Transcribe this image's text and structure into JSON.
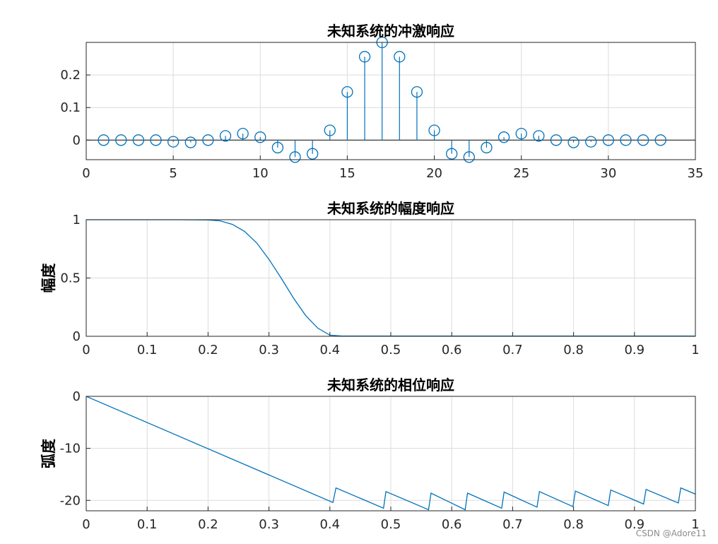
{
  "watermark": "CSDN @Adore11",
  "chart_data": [
    {
      "type": "stem",
      "title": "未知系统的冲激响应",
      "ylabel": "",
      "xlim": [
        0,
        35
      ],
      "ylim": [
        -0.06,
        0.3
      ],
      "xticks": [
        0,
        5,
        10,
        15,
        20,
        25,
        30,
        35
      ],
      "yticks": [
        0,
        0.1,
        0.2
      ],
      "grid": true,
      "color": "#0072BD",
      "x": [
        1,
        2,
        3,
        4,
        5,
        6,
        7,
        8,
        9,
        10,
        11,
        12,
        13,
        14,
        15,
        16,
        17,
        18,
        19,
        20,
        21,
        22,
        23,
        24,
        25,
        26,
        27,
        28,
        29,
        30,
        31,
        32,
        33
      ],
      "y": [
        0.0,
        0.0,
        0.0,
        0.0,
        -0.005,
        -0.007,
        0.0,
        0.013,
        0.02,
        0.009,
        -0.023,
        -0.052,
        -0.042,
        0.03,
        0.148,
        0.256,
        0.3,
        0.256,
        0.148,
        0.03,
        -0.042,
        -0.052,
        -0.023,
        0.009,
        0.02,
        0.013,
        0.0,
        -0.007,
        -0.005,
        0.0,
        0.0,
        0.0,
        0.0
      ]
    },
    {
      "type": "line",
      "title": "未知系统的幅度响应",
      "ylabel": "幅度",
      "xlim": [
        0,
        1
      ],
      "ylim": [
        0,
        1
      ],
      "xticks": [
        0,
        0.1,
        0.2,
        0.3,
        0.4,
        0.5,
        0.6,
        0.7,
        0.8,
        0.9,
        1
      ],
      "yticks": [
        0,
        0.5,
        1
      ],
      "grid": true,
      "color": "#0072BD",
      "x": [
        0,
        0.05,
        0.1,
        0.15,
        0.2,
        0.22,
        0.24,
        0.26,
        0.28,
        0.3,
        0.32,
        0.34,
        0.36,
        0.38,
        0.4,
        0.42,
        0.5,
        0.6,
        0.7,
        0.8,
        0.9,
        1.0
      ],
      "y": [
        1,
        1,
        1,
        1,
        0.998,
        0.99,
        0.96,
        0.9,
        0.8,
        0.66,
        0.5,
        0.33,
        0.18,
        0.07,
        0.01,
        0.002,
        0.002,
        0.002,
        0.002,
        0.002,
        0.002,
        0.002
      ]
    },
    {
      "type": "line",
      "title": "未知系统的相位响应",
      "ylabel": "弧度",
      "xlim": [
        0,
        1
      ],
      "ylim": [
        -22,
        0
      ],
      "xticks": [
        0,
        0.1,
        0.2,
        0.3,
        0.4,
        0.5,
        0.6,
        0.7,
        0.8,
        0.9,
        1
      ],
      "yticks": [
        -20,
        -10,
        0
      ],
      "grid": true,
      "color": "#0072BD",
      "x": [
        0,
        0.405,
        0.41,
        0.488,
        0.492,
        0.562,
        0.566,
        0.622,
        0.626,
        0.682,
        0.686,
        0.74,
        0.744,
        0.799,
        0.803,
        0.857,
        0.861,
        0.915,
        0.919,
        0.972,
        0.976,
        1.0
      ],
      "y": [
        0,
        -20.4,
        -17.6,
        -21.5,
        -18.3,
        -21.8,
        -18.6,
        -21.8,
        -18.6,
        -21.5,
        -18.4,
        -21.3,
        -18.3,
        -21.2,
        -18.2,
        -21.0,
        -18.0,
        -20.7,
        -17.9,
        -20.5,
        -17.6,
        -18.8
      ]
    }
  ]
}
